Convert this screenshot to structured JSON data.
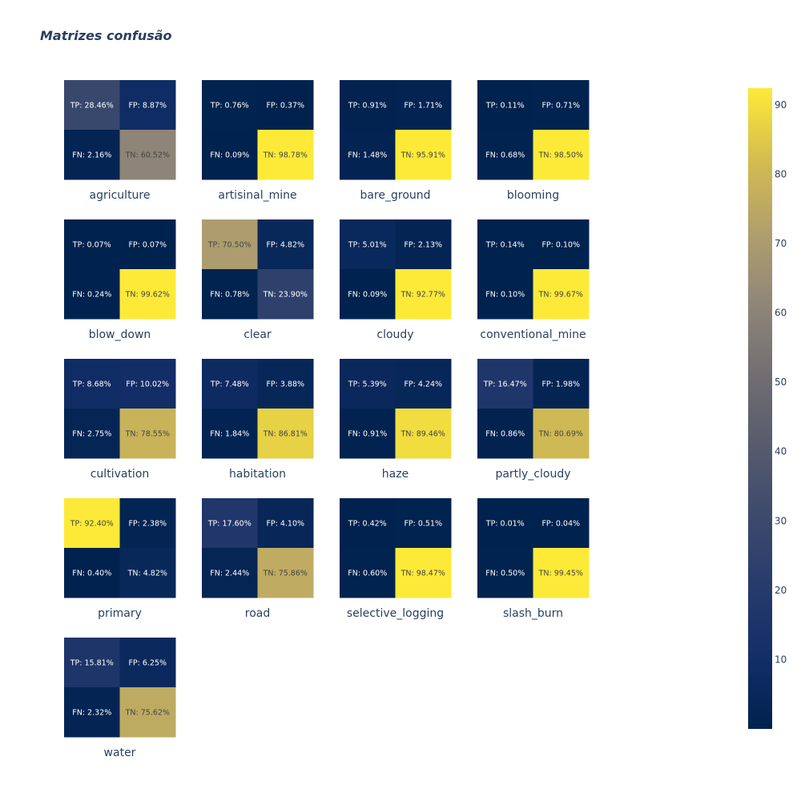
{
  "chart_data": {
    "type": "heatmap",
    "title": "Matrizes confusão",
    "subplot_columns": 4,
    "colorscale": "cividis",
    "color_range": [
      0.01,
      92.4
    ],
    "colorbar": {
      "ticks": [
        10,
        20,
        30,
        40,
        50,
        60,
        70,
        80,
        90
      ]
    },
    "matrices": [
      {
        "label": "agriculture",
        "tp": 28.46,
        "fp": 8.87,
        "fn": 2.16,
        "tn": 60.52
      },
      {
        "label": "artisinal_mine",
        "tp": 0.76,
        "fp": 0.37,
        "fn": 0.09,
        "tn": 98.78
      },
      {
        "label": "bare_ground",
        "tp": 0.91,
        "fp": 1.71,
        "fn": 1.48,
        "tn": 95.91
      },
      {
        "label": "blooming",
        "tp": 0.11,
        "fp": 0.71,
        "fn": 0.68,
        "tn": 98.5
      },
      {
        "label": "blow_down",
        "tp": 0.07,
        "fp": 0.07,
        "fn": 0.24,
        "tn": 99.62
      },
      {
        "label": "clear",
        "tp": 70.5,
        "fp": 4.82,
        "fn": 0.78,
        "tn": 23.9
      },
      {
        "label": "cloudy",
        "tp": 5.01,
        "fp": 2.13,
        "fn": 0.09,
        "tn": 92.77
      },
      {
        "label": "conventional_mine",
        "tp": 0.14,
        "fp": 0.1,
        "fn": 0.1,
        "tn": 99.67
      },
      {
        "label": "cultivation",
        "tp": 8.68,
        "fp": 10.02,
        "fn": 2.75,
        "tn": 78.55
      },
      {
        "label": "habitation",
        "tp": 7.48,
        "fp": 3.88,
        "fn": 1.84,
        "tn": 86.81
      },
      {
        "label": "haze",
        "tp": 5.39,
        "fp": 4.24,
        "fn": 0.91,
        "tn": 89.46
      },
      {
        "label": "partly_cloudy",
        "tp": 16.47,
        "fp": 1.98,
        "fn": 0.86,
        "tn": 80.69
      },
      {
        "label": "primary",
        "tp": 92.4,
        "fp": 2.38,
        "fn": 0.4,
        "tn": 4.82
      },
      {
        "label": "road",
        "tp": 17.6,
        "fp": 4.1,
        "fn": 2.44,
        "tn": 75.86
      },
      {
        "label": "selective_logging",
        "tp": 0.42,
        "fp": 0.51,
        "fn": 0.6,
        "tn": 98.47
      },
      {
        "label": "slash_burn",
        "tp": 0.01,
        "fp": 0.04,
        "fn": 0.5,
        "tn": 99.45
      },
      {
        "label": "water",
        "tp": 15.81,
        "fp": 6.25,
        "fn": 2.32,
        "tn": 75.62
      }
    ]
  }
}
